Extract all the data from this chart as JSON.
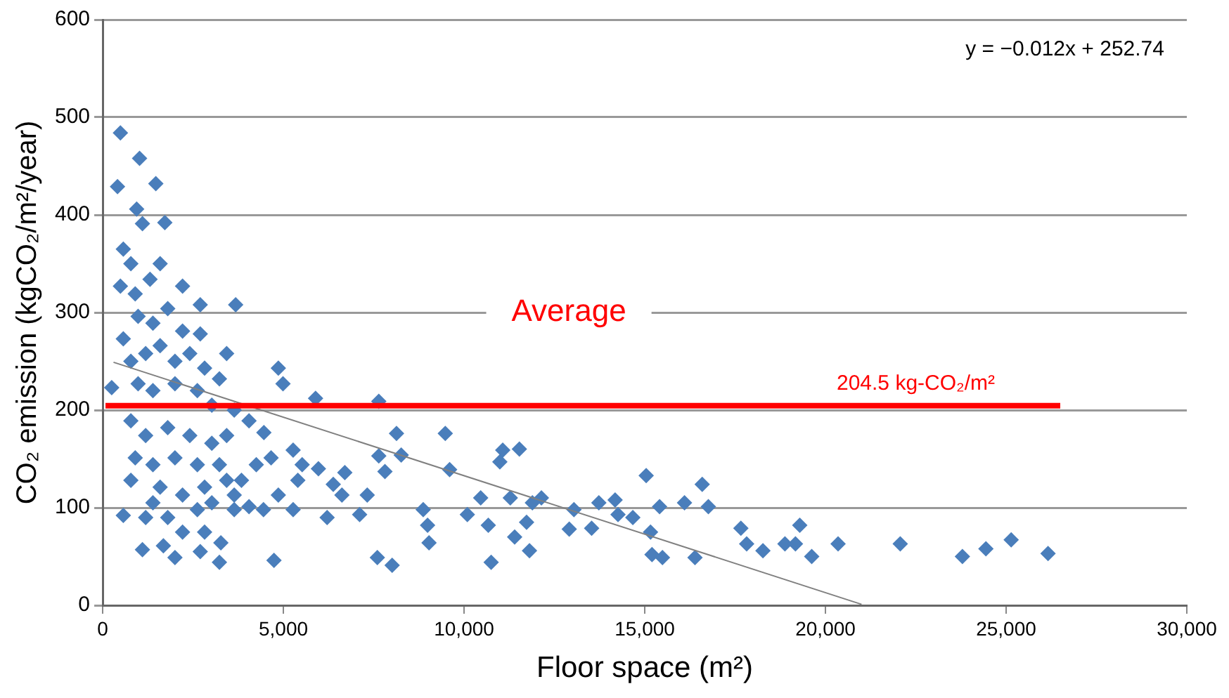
{
  "chart_data": {
    "type": "scatter",
    "xlabel": "Floor space (m²)",
    "ylabel": "CO₂ emission (kgCO₂/m²/year)",
    "xlim": [
      0,
      30000
    ],
    "xticks": [
      0,
      {
        "value": 5000,
        "label": "5,000"
      },
      {
        "value": 10000,
        "label": "10,000"
      },
      {
        "value": 15000,
        "label": "15,000"
      },
      {
        "value": 20000,
        "label": "20,000"
      },
      {
        "value": 25000,
        "label": "25,000"
      },
      {
        "value": 30000,
        "label": "30,000"
      }
    ],
    "ylim": [
      0,
      600
    ],
    "yticks": [
      0,
      100,
      200,
      300,
      400,
      500,
      600
    ],
    "grid": "y",
    "legend": false,
    "marker": "diamond",
    "series": [
      {
        "color": "#4a7ebb",
        "x": [
          490,
          1020,
          410,
          1470,
          940,
          1100,
          1720,
          2210,
          2700,
          3680,
          2700,
          3430,
          250,
          4860,
          4990,
          5890,
          570,
          1190,
          1100,
          1680,
          2000,
          2700,
          2820,
          3270,
          3230,
          4740,
          7640,
          8130,
          9480,
          8260,
          7640,
          7810,
          9600,
          11070,
          11530,
          10990,
          6700,
          7320,
          7110,
          8870,
          8990,
          9030,
          10090,
          10460,
          10670,
          11280,
          11400,
          11810,
          11730,
          11890,
          12140,
          7600,
          8010,
          10750,
          12910,
          13040,
          13530,
          13730,
          14180,
          14260,
          14670,
          15040,
          15160,
          15200,
          15490,
          15410,
          16100,
          16590,
          16760,
          16390,
          17660,
          17820,
          18270,
          18880,
          19290,
          19170,
          19620,
          20350,
          22070,
          23790,
          24440,
          25140,
          26160,
          5400,
          5520,
          5970,
          6380,
          6620,
          6210,
          5270,
          5270,
          4660,
          4250,
          3840,
          3640,
          4050,
          4450,
          4860,
          570,
          780,
          490,
          900,
          1310,
          1590,
          980,
          570,
          1390,
          1800,
          2210,
          780,
          1190,
          1590,
          2000,
          2410,
          2820,
          3230,
          980,
          1390,
          2000,
          2620,
          3020,
          3640,
          4050,
          4460,
          780,
          1190,
          1800,
          2410,
          3020,
          3430,
          900,
          1390,
          2000,
          2620,
          3230,
          780,
          1590,
          2210,
          2820,
          3430,
          1800,
          2620,
          2210,
          1390,
          3020,
          3640
        ],
        "values": [
          484,
          458,
          429,
          432,
          406,
          391,
          392,
          327,
          308,
          308,
          278,
          258,
          223,
          243,
          227,
          212,
          92,
          90,
          57,
          61,
          49,
          55,
          75,
          64,
          44,
          46,
          209,
          176,
          176,
          154,
          153,
          137,
          139,
          159,
          160,
          147,
          136,
          113,
          93,
          98,
          82,
          64,
          93,
          110,
          82,
          110,
          70,
          56,
          85,
          105,
          110,
          49,
          41,
          44,
          78,
          98,
          79,
          105,
          108,
          93,
          90,
          133,
          75,
          52,
          49,
          101,
          105,
          124,
          101,
          49,
          79,
          63,
          56,
          63,
          82,
          63,
          50,
          63,
          63,
          50,
          58,
          67,
          53,
          128,
          144,
          140,
          124,
          113,
          90,
          98,
          159,
          151,
          144,
          128,
          113,
          101,
          98,
          113,
          365,
          350,
          327,
          319,
          334,
          350,
          296,
          273,
          289,
          304,
          281,
          250,
          258,
          266,
          250,
          258,
          243,
          232,
          227,
          220,
          227,
          220,
          205,
          200,
          189,
          177,
          189,
          174,
          182,
          174,
          166,
          174,
          151,
          144,
          151,
          144,
          144,
          128,
          121,
          113,
          121,
          128,
          90,
          98,
          75,
          105,
          105,
          98
        ]
      },
      {
        "type": "line",
        "color": "#808080",
        "marker": "none",
        "x": [
          300,
          21000
        ],
        "values": [
          249,
          1
        ]
      }
    ],
    "ref_lines": [
      {
        "axis": "y",
        "value": 204.5,
        "label": "204.5 kg-CO₂/m²",
        "color": "#ff0000"
      }
    ],
    "annotations": [
      "y = −0.012x + 252.74",
      "Average"
    ]
  }
}
